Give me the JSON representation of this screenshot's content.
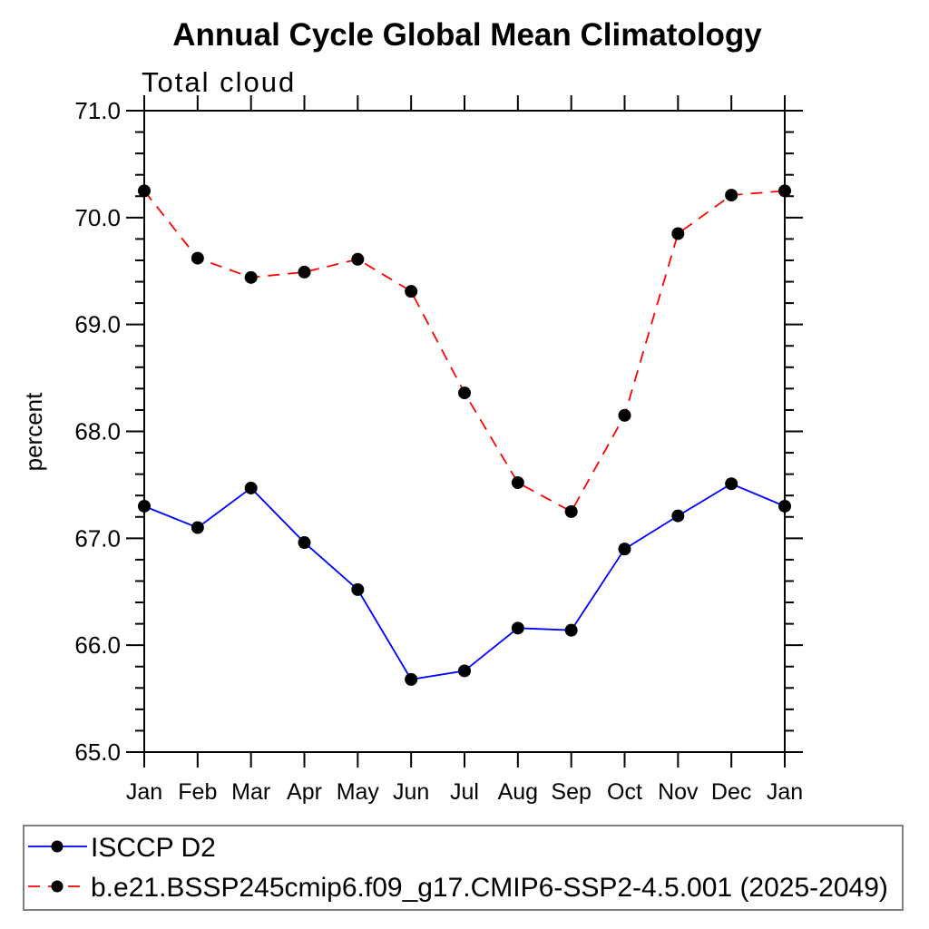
{
  "title": "Annual Cycle Global Mean Climatology",
  "chart_data": {
    "type": "line",
    "title": "Annual Cycle Global Mean Climatology",
    "subtitle": "Total cloud",
    "ylabel": "percent",
    "xlabel": "",
    "categories": [
      "Jan",
      "Feb",
      "Mar",
      "Apr",
      "May",
      "Jun",
      "Jul",
      "Aug",
      "Sep",
      "Oct",
      "Nov",
      "Dec",
      "Jan"
    ],
    "ylim": [
      65.0,
      71.0
    ],
    "ytick_major": 1.0,
    "ytick_minor": 0.2,
    "ytick_labels": [
      "65.0",
      "66.0",
      "67.0",
      "68.0",
      "69.0",
      "70.0",
      "71.0"
    ],
    "grid": false,
    "legend_position": "bottom-left-box",
    "series": [
      {
        "name": "ISCCP D2",
        "color": "#0000ff",
        "line_style": "solid",
        "marker": "filled-circle",
        "marker_color": "#000000",
        "values": [
          67.3,
          67.1,
          67.47,
          66.96,
          66.52,
          65.68,
          65.76,
          66.16,
          66.14,
          66.9,
          67.21,
          67.51,
          67.3
        ]
      },
      {
        "name": "b.e21.BSSP245cmip6.f09_g17.CMIP6-SSP2-4.5.001 (2025-2049)",
        "color": "#ff0000",
        "line_style": "dashed",
        "marker": "filled-circle",
        "marker_color": "#000000",
        "values": [
          70.25,
          69.62,
          69.44,
          69.49,
          69.61,
          69.31,
          68.36,
          67.52,
          67.25,
          68.15,
          69.85,
          70.21,
          70.25
        ]
      }
    ]
  }
}
